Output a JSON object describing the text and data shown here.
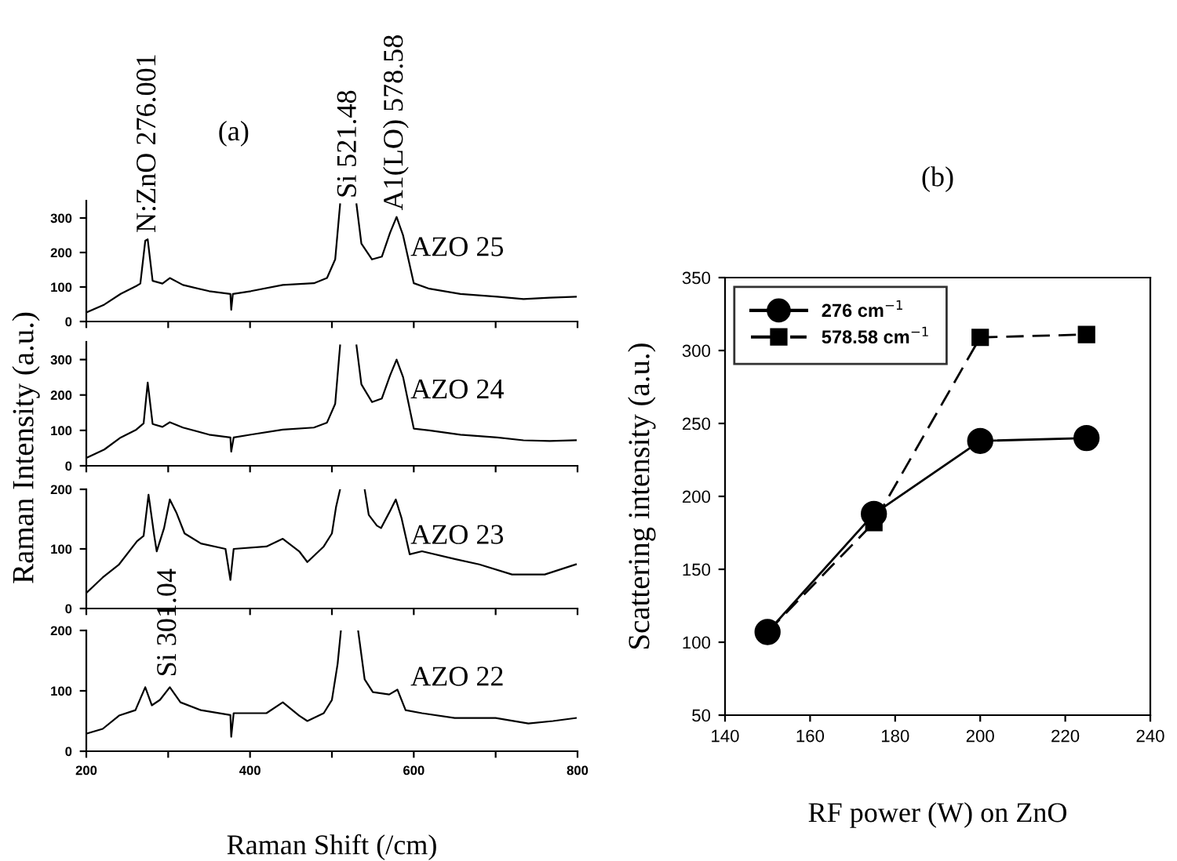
{
  "chart_data": [
    {
      "type": "line",
      "title": "(a)",
      "ylabel": "Raman Intensity (a.u.)",
      "xlim": [
        200,
        800
      ],
      "ylim": [
        0,
        350
      ],
      "xticks": [
        {
          "value": 200,
          "label": null
        },
        {
          "value": 300,
          "label": null
        },
        {
          "value": 400,
          "label": null
        },
        {
          "value": 500,
          "label": null
        },
        {
          "value": 600,
          "label": null
        },
        {
          "value": 700,
          "label": null
        },
        {
          "value": 800,
          "label": null
        }
      ],
      "yticks": [
        0,
        100,
        200,
        300
      ],
      "tick_labels": "y",
      "grid": false,
      "legend": false,
      "annotations": [
        {
          "text": "N:ZnO 276.001",
          "x": 276,
          "y": 238
        },
        "Si 521.48",
        {
          "text": "A1(LO) 578.58",
          "x": 578,
          "y": 303
        }
      ],
      "series": [
        {
          "name": "AZO 25",
          "color": "#000000",
          "x": [
            200,
            222,
            242,
            261,
            266,
            272,
            275,
            281,
            293,
            302,
            318,
            350,
            376,
            377,
            379,
            401,
            440,
            478,
            494,
            504,
            510,
            521,
            530,
            536,
            549,
            561,
            571,
            579,
            587,
            600,
            619,
            657,
            702,
            734,
            766,
            798
          ],
          "values": [
            26,
            49,
            80,
            103,
            110,
            234,
            238,
            118,
            110,
            126,
            106,
            88,
            80,
            34,
            80,
            88,
            106,
            111,
            126,
            180,
            340,
            null,
            340,
            226,
            180,
            188,
            257,
            303,
            249,
            111,
            95,
            80,
            72,
            65,
            69,
            72
          ]
        }
      ]
    },
    {
      "type": "line",
      "xlim": [
        200,
        800
      ],
      "ylim": [
        0,
        350
      ],
      "xticks": [
        {
          "value": 200,
          "label": null
        },
        {
          "value": 300,
          "label": null
        },
        {
          "value": 400,
          "label": null
        },
        {
          "value": 500,
          "label": null
        },
        {
          "value": 600,
          "label": null
        },
        {
          "value": 700,
          "label": null
        },
        {
          "value": 800,
          "label": null
        }
      ],
      "yticks": [
        0,
        100,
        200,
        300
      ],
      "tick_labels": "y",
      "grid": false,
      "legend": false,
      "series": [
        {
          "name": "AZO 24",
          "color": "#000000",
          "x": [
            200,
            222,
            242,
            261,
            270,
            275,
            281,
            293,
            302,
            318,
            350,
            376,
            377,
            380,
            401,
            440,
            478,
            494,
            504,
            510,
            521,
            530,
            536,
            549,
            561,
            571,
            579,
            587,
            600,
            619,
            657,
            702,
            734,
            766,
            798
          ],
          "values": [
            22,
            46,
            80,
            102,
            120,
            235,
            118,
            110,
            123,
            108,
            88,
            80,
            40,
            80,
            88,
            102,
            108,
            122,
            175,
            340,
            null,
            340,
            230,
            180,
            190,
            255,
            300,
            250,
            105,
            100,
            88,
            80,
            72,
            70,
            72
          ]
        }
      ]
    },
    {
      "type": "line",
      "xlim": [
        200,
        800
      ],
      "ylim": [
        0,
        200
      ],
      "xticks": [
        {
          "value": 200,
          "label": null
        },
        {
          "value": 300,
          "label": null
        },
        {
          "value": 400,
          "label": null
        },
        {
          "value": 500,
          "label": null
        },
        {
          "value": 600,
          "label": null
        },
        {
          "value": 700,
          "label": null
        },
        {
          "value": 800,
          "label": null
        }
      ],
      "yticks": [
        0,
        100,
        200
      ],
      "tick_labels": "y",
      "grid": false,
      "legend": false,
      "series": [
        {
          "name": "AZO 23",
          "color": "#000000",
          "x": [
            200,
            220,
            240,
            262,
            270,
            276,
            283,
            286,
            295,
            302,
            310,
            320,
            340,
            370,
            376,
            380,
            420,
            440,
            460,
            470,
            490,
            500,
            505,
            510,
            525,
            540,
            545,
            555,
            560,
            570,
            578,
            585,
            595,
            610,
            650,
            680,
            720,
            760,
            798
          ],
          "values": [
            26,
            52,
            74,
            113,
            122,
            191,
            122,
            96,
            135,
            183,
            161,
            126,
            109,
            100,
            48,
            100,
            104,
            117,
            96,
            78,
            104,
            126,
            170,
            200,
            null,
            200,
            157,
            139,
            135,
            161,
            183,
            152,
            91,
            96,
            83,
            74,
            57,
            57,
            74
          ]
        }
      ]
    },
    {
      "type": "line",
      "xlabel": "Raman Shift (/cm)",
      "xlim": [
        200,
        800
      ],
      "ylim": [
        0,
        200
      ],
      "xticks": [
        200,
        {
          "value": 300,
          "label": null
        },
        400,
        {
          "value": 500,
          "label": null
        },
        600,
        {
          "value": 700,
          "label": null
        },
        800
      ],
      "yticks": [
        0,
        100,
        200
      ],
      "grid": false,
      "legend": false,
      "annotations": [
        {
          "text": "Si 301.04",
          "x": 301,
          "y": 112
        }
      ],
      "series": [
        {
          "name": "AZO 22",
          "color": "#000000",
          "x": [
            200,
            220,
            240,
            260,
            272,
            280,
            290,
            302,
            315,
            340,
            376,
            377,
            380,
            420,
            440,
            460,
            470,
            490,
            500,
            507,
            511,
            521,
            532,
            540,
            550,
            570,
            580,
            590,
            610,
            650,
            700,
            740,
            770,
            798
          ],
          "values": [
            29,
            37,
            59,
            68,
            106,
            76,
            85,
            106,
            81,
            68,
            60,
            24,
            63,
            63,
            81,
            59,
            50,
            63,
            85,
            145,
            200,
            null,
            200,
            119,
            98,
            94,
            102,
            68,
            63,
            55,
            55,
            46,
            50,
            55
          ]
        }
      ]
    },
    {
      "type": "line",
      "title": "(b)",
      "xlabel": "RF power (W) on ZnO",
      "ylabel": "Scattering intensity (a.u.)",
      "xlim": [
        140,
        240
      ],
      "ylim": [
        50,
        350
      ],
      "xticks": [
        140,
        160,
        180,
        200,
        220,
        240
      ],
      "yticks": [
        50,
        100,
        150,
        200,
        250,
        300,
        350
      ],
      "grid": false,
      "legend": "top left",
      "series": [
        {
          "name": "276 cm$^{−1}$",
          "color": "#000000",
          "marker": "circle",
          "line_style": "solid",
          "x": [
            150,
            175,
            200,
            225
          ],
          "values": [
            107,
            188,
            238,
            240
          ]
        },
        {
          "name": "578.58 cm$^{−1}$",
          "color": "#000000",
          "marker": "square",
          "line_style": "dashed",
          "x": [
            150,
            175,
            200,
            225
          ],
          "values": [
            107,
            182,
            309,
            311
          ]
        }
      ]
    }
  ]
}
